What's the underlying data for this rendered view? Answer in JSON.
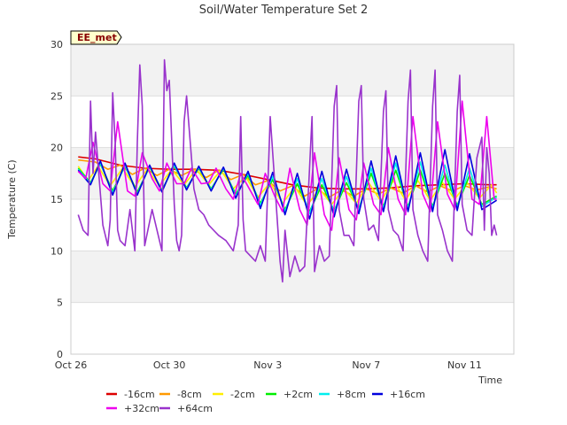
{
  "chart_data": {
    "type": "line",
    "title": "Soil/Water Temperature Set 2",
    "xlabel": "Time",
    "ylabel": "Temperature (C)",
    "site_label": "EE_met",
    "xlim_days": [
      0,
      18
    ],
    "ylim": [
      0,
      30
    ],
    "y_ticks": [
      0,
      5,
      10,
      15,
      20,
      25,
      30
    ],
    "x_ticks": [
      {
        "day": 0,
        "label": "Oct 26"
      },
      {
        "day": 4,
        "label": "Oct 30"
      },
      {
        "day": 8,
        "label": "Nov 3"
      },
      {
        "day": 12,
        "label": "Nov 7"
      },
      {
        "day": 16,
        "label": "Nov 11"
      }
    ],
    "grid": "horizontal alternating bands",
    "legend_position": "bottom",
    "series": [
      {
        "name": "-16cm",
        "color": "#dd0000",
        "x": [
          0.3,
          1,
          2,
          3,
          4,
          5,
          6,
          6.5,
          7,
          8,
          9,
          10,
          11,
          12,
          13,
          14,
          15,
          16,
          17,
          17.3
        ],
        "y": [
          19.1,
          18.9,
          18.3,
          18.0,
          17.9,
          17.9,
          17.8,
          17.6,
          17.4,
          16.9,
          16.4,
          16.1,
          16.0,
          16.0,
          16.1,
          16.3,
          16.4,
          16.5,
          16.4,
          16.4
        ]
      },
      {
        "name": "-8cm",
        "color": "#ff9900",
        "x": [
          0.3,
          1,
          1.5,
          2,
          2.5,
          3,
          3.5,
          4,
          4.5,
          5,
          5.5,
          6,
          6.5,
          7,
          7.5,
          8,
          8.5,
          9,
          9.5,
          10,
          10.5,
          11,
          11.5,
          12,
          12.5,
          13,
          13.5,
          14,
          14.5,
          15,
          15.5,
          16,
          16.5,
          17,
          17.3
        ],
        "y": [
          18.8,
          18.6,
          17.9,
          18.3,
          17.4,
          18.0,
          17.3,
          17.9,
          17.3,
          17.9,
          17.1,
          17.8,
          16.9,
          17.4,
          16.4,
          16.8,
          15.8,
          16.3,
          15.3,
          16.0,
          15.2,
          15.9,
          15.3,
          16.0,
          15.5,
          16.1,
          15.6,
          16.3,
          15.7,
          16.3,
          15.8,
          16.3,
          15.9,
          16.2,
          16.0
        ]
      },
      {
        "name": "-2cm",
        "color": "#ffee00",
        "x": [
          0.3,
          0.7,
          1.1,
          1.6,
          2.1,
          2.6,
          3.1,
          3.6,
          4.1,
          4.6,
          5.1,
          5.6,
          6.1,
          6.6,
          7.1,
          7.6,
          8.1,
          8.6,
          9.1,
          9.6,
          10.1,
          10.6,
          11.1,
          11.6,
          12.1,
          12.6,
          13.1,
          13.6,
          14.1,
          14.6,
          15.1,
          15.6,
          16.1,
          16.6,
          17.1,
          17.3
        ],
        "y": [
          18.2,
          16.8,
          18.2,
          16.3,
          18.0,
          16.2,
          17.9,
          16.3,
          17.9,
          16.4,
          17.9,
          16.4,
          17.8,
          16.0,
          17.2,
          15.2,
          16.6,
          14.6,
          16.2,
          14.4,
          16.0,
          14.5,
          16.0,
          14.6,
          16.6,
          14.8,
          16.8,
          14.9,
          16.8,
          14.9,
          16.6,
          15.0,
          16.6,
          15.1,
          16.4,
          15.6
        ]
      },
      {
        "name": "+2cm",
        "color": "#00ee00",
        "x": [
          0.3,
          0.8,
          1.2,
          1.7,
          2.2,
          2.7,
          3.2,
          3.7,
          4.2,
          4.7,
          5.2,
          5.7,
          6.2,
          6.7,
          7.2,
          7.7,
          8.2,
          8.7,
          9.2,
          9.7,
          10.2,
          10.7,
          11.2,
          11.7,
          12.2,
          12.7,
          13.2,
          13.7,
          14.2,
          14.7,
          15.2,
          15.7,
          16.2,
          16.7,
          17.3
        ],
        "y": [
          18.0,
          16.6,
          18.4,
          15.8,
          18.2,
          15.7,
          18.1,
          15.9,
          18.2,
          16.1,
          18.0,
          16.0,
          17.9,
          15.5,
          17.3,
          14.6,
          16.9,
          14.0,
          16.5,
          13.8,
          16.4,
          13.9,
          16.6,
          14.1,
          17.5,
          14.3,
          17.8,
          14.3,
          17.8,
          14.3,
          17.5,
          14.4,
          17.3,
          14.5,
          15.3
        ]
      },
      {
        "name": "+8cm",
        "color": "#00eeee",
        "x": [
          0.3,
          0.8,
          1.2,
          1.7,
          2.2,
          2.7,
          3.2,
          3.7,
          4.2,
          4.7,
          5.2,
          5.7,
          6.2,
          6.7,
          7.2,
          7.7,
          8.2,
          8.7,
          9.2,
          9.7,
          10.2,
          10.7,
          11.2,
          11.7,
          12.2,
          12.7,
          13.2,
          13.7,
          14.2,
          14.7,
          15.2,
          15.7,
          16.2,
          16.7,
          17.3
        ],
        "y": [
          17.9,
          16.5,
          18.5,
          15.6,
          18.3,
          15.5,
          18.2,
          15.8,
          18.3,
          16.0,
          18.1,
          15.9,
          18.0,
          15.3,
          17.5,
          14.4,
          17.2,
          13.8,
          17.0,
          13.6,
          17.0,
          13.7,
          17.2,
          13.9,
          18.0,
          14.1,
          18.5,
          14.1,
          18.6,
          14.1,
          18.3,
          14.2,
          18.0,
          14.3,
          15.2
        ]
      },
      {
        "name": "+16cm",
        "color": "#0000dd",
        "x": [
          0.3,
          0.8,
          1.2,
          1.7,
          2.2,
          2.7,
          3.2,
          3.7,
          4.2,
          4.7,
          5.2,
          5.7,
          6.2,
          6.7,
          7.2,
          7.7,
          8.2,
          8.7,
          9.2,
          9.7,
          10.2,
          10.7,
          11.2,
          11.7,
          12.2,
          12.7,
          13.2,
          13.7,
          14.2,
          14.7,
          15.2,
          15.7,
          16.2,
          16.7,
          17.3
        ],
        "y": [
          17.8,
          16.4,
          18.7,
          15.4,
          18.5,
          15.4,
          18.3,
          15.7,
          18.5,
          15.9,
          18.2,
          15.8,
          18.1,
          15.1,
          17.7,
          14.1,
          17.6,
          13.5,
          17.5,
          13.1,
          17.7,
          13.3,
          17.9,
          13.6,
          18.7,
          13.8,
          19.2,
          13.8,
          19.5,
          13.8,
          19.8,
          13.9,
          19.4,
          14.0,
          14.9
        ]
      },
      {
        "name": "+32cm",
        "color": "#ee00ee",
        "x": [
          0.3,
          0.6,
          0.9,
          1.3,
          1.6,
          1.9,
          2.3,
          2.6,
          2.9,
          3.3,
          3.6,
          3.9,
          4.3,
          4.6,
          4.9,
          5.3,
          5.6,
          5.9,
          6.3,
          6.6,
          6.9,
          7.3,
          7.6,
          7.9,
          8.3,
          8.6,
          8.9,
          9.3,
          9.6,
          9.9,
          10.3,
          10.6,
          10.9,
          11.3,
          11.6,
          11.9,
          12.3,
          12.6,
          12.9,
          13.3,
          13.6,
          13.9,
          14.3,
          14.6,
          14.9,
          15.3,
          15.6,
          15.9,
          16.3,
          16.6,
          16.9,
          17.2,
          17.3
        ],
        "y": [
          17.7,
          17.0,
          20.5,
          16.5,
          15.8,
          22.5,
          15.8,
          15.3,
          19.5,
          17.0,
          15.8,
          18.5,
          16.5,
          16.5,
          18.0,
          16.5,
          16.6,
          18.0,
          16.0,
          15.0,
          17.5,
          15.8,
          14.5,
          17.5,
          15.2,
          13.8,
          18.0,
          14.0,
          12.5,
          19.5,
          13.5,
          12.0,
          19.0,
          14.0,
          13.0,
          18.5,
          14.5,
          13.5,
          20.0,
          15.0,
          13.5,
          23.0,
          15.5,
          13.8,
          22.5,
          15.5,
          14.0,
          24.5,
          15.0,
          14.5,
          23.0,
          15.0,
          15.0
        ]
      },
      {
        "name": "+64cm",
        "color": "#9933cc",
        "x": [
          0.3,
          0.5,
          0.7,
          0.8,
          0.9,
          1.0,
          1.3,
          1.5,
          1.6,
          1.7,
          1.8,
          1.9,
          2.0,
          2.2,
          2.4,
          2.6,
          2.7,
          2.8,
          2.9,
          3.0,
          3.3,
          3.6,
          3.7,
          3.8,
          3.9,
          4.0,
          4.2,
          4.3,
          4.4,
          4.5,
          4.6,
          4.7,
          5.0,
          5.2,
          5.4,
          5.6,
          5.8,
          6.0,
          6.3,
          6.6,
          6.8,
          6.9,
          7.0,
          7.1,
          7.3,
          7.5,
          7.7,
          7.9,
          8.1,
          8.3,
          8.5,
          8.6,
          8.7,
          8.9,
          9.1,
          9.3,
          9.5,
          9.7,
          9.8,
          9.9,
          10.1,
          10.3,
          10.5,
          10.7,
          10.8,
          10.9,
          11.1,
          11.3,
          11.5,
          11.7,
          11.8,
          11.9,
          12.1,
          12.3,
          12.5,
          12.7,
          12.8,
          12.9,
          13.1,
          13.3,
          13.5,
          13.7,
          13.8,
          13.9,
          14.1,
          14.3,
          14.5,
          14.7,
          14.8,
          14.9,
          15.1,
          15.3,
          15.5,
          15.7,
          15.8,
          15.9,
          16.1,
          16.3,
          16.5,
          16.7,
          16.8,
          16.9,
          17.0,
          17.1,
          17.2,
          17.3
        ],
        "y": [
          13.5,
          12.0,
          11.5,
          24.5,
          17.5,
          21.5,
          12.5,
          10.5,
          13.0,
          25.3,
          20.5,
          12.0,
          11.0,
          10.5,
          14.0,
          10.0,
          20.5,
          28.0,
          24.0,
          10.5,
          14.0,
          11.0,
          10.0,
          28.5,
          25.5,
          26.5,
          14.5,
          11.0,
          10.0,
          11.5,
          22.5,
          25.0,
          16.0,
          14.0,
          13.5,
          12.5,
          12.0,
          11.5,
          11.0,
          10.0,
          12.5,
          23.0,
          13.0,
          10.0,
          9.5,
          9.0,
          10.5,
          9.0,
          23.0,
          16.0,
          9.0,
          7.0,
          12.0,
          7.5,
          9.5,
          8.0,
          8.5,
          18.0,
          23.0,
          8.0,
          10.5,
          9.0,
          9.5,
          24.0,
          26.0,
          14.0,
          11.5,
          11.5,
          10.5,
          24.5,
          26.0,
          15.0,
          12.0,
          12.5,
          11.0,
          23.5,
          25.5,
          14.0,
          12.0,
          11.5,
          10.0,
          24.5,
          27.5,
          14.0,
          11.5,
          10.0,
          9.0,
          24.0,
          27.5,
          13.5,
          12.0,
          10.0,
          9.0,
          23.5,
          27.0,
          14.5,
          12.0,
          11.5,
          19.0,
          21.0,
          12.0,
          20.0,
          17.5,
          11.5,
          12.5,
          11.5
        ]
      }
    ]
  }
}
